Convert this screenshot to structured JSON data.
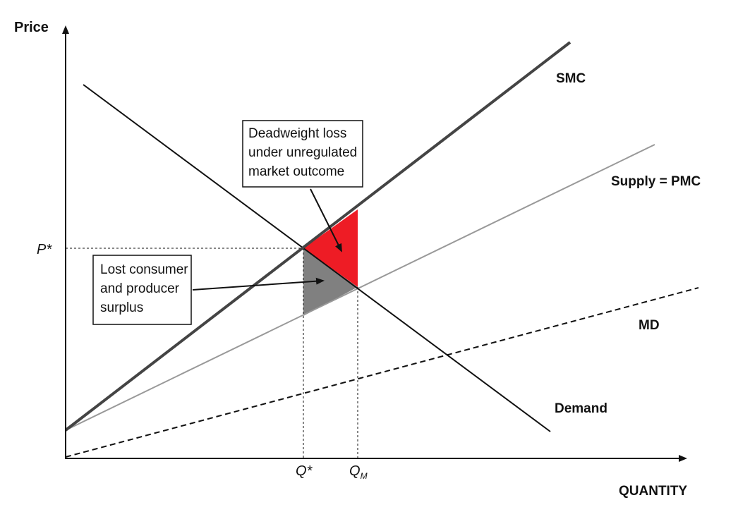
{
  "axes": {
    "y_label": "Price",
    "x_label": "QUANTITY",
    "p_star": "P*",
    "q_star": "Q*",
    "q_m_main": "Q",
    "q_m_sub": "M"
  },
  "curves": {
    "smc": "SMC",
    "supply": "Supply = PMC",
    "md": "MD",
    "demand": "Demand"
  },
  "callouts": {
    "deadweight": [
      "Deadweight loss",
      "under unregulated",
      "market outcome"
    ],
    "lost_surplus": [
      "Lost consumer",
      "and producer",
      "surplus"
    ]
  },
  "colors": {
    "deadweight_fill": "#ee1c25",
    "lost_surplus_fill": "#808080",
    "smc_line": "#444444",
    "supply_line": "#999999"
  }
}
